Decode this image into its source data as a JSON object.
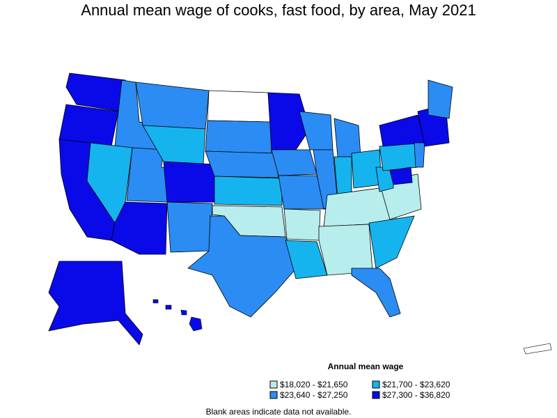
{
  "title": "Annual mean wage of cooks, fast food, by area, May 2021",
  "legend": {
    "title": "Annual mean wage",
    "items": [
      {
        "label": "$18,020 - $21,650",
        "color": "#b7eded"
      },
      {
        "label": "$21,700 - $23,620",
        "color": "#15b4ef"
      },
      {
        "label": "$23,640 - $27,250",
        "color": "#2b8cf3"
      },
      {
        "label": "$27,300 - $36,820",
        "color": "#0a0ae8"
      }
    ]
  },
  "footnote": "Blank areas indicate data not available.",
  "colors": {
    "no_data": "#ffffff",
    "border": "#000000"
  }
}
